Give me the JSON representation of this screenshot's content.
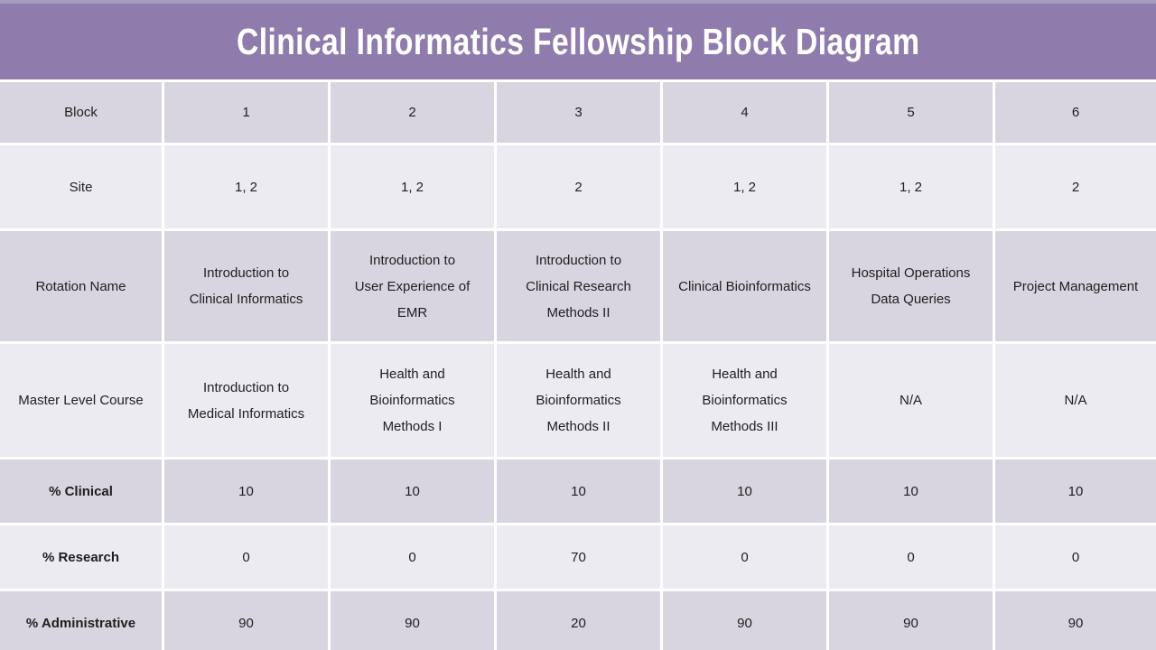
{
  "title": "Clinical Informatics Fellowship Block Diagram",
  "colors": {
    "header_purple": "#8f7cad",
    "header_top_strip": "#a89bc1",
    "row_dark": "#d8d5e0",
    "row_light": "#edebf2",
    "text": "#1e1e1e",
    "title_text": "#ffffff"
  },
  "table": {
    "rows": [
      {
        "label": "Block",
        "bold_label": false,
        "values": [
          "1",
          "2",
          "3",
          "4",
          "5",
          "6"
        ]
      },
      {
        "label": "Site",
        "bold_label": false,
        "values": [
          "1, 2",
          "1, 2",
          "2",
          "1, 2",
          "1, 2",
          "2"
        ]
      },
      {
        "label": "Rotation Name",
        "bold_label": false,
        "values": [
          "Introduction to\nClinical Informatics",
          "Introduction to\nUser Experience of\nEMR",
          "Introduction to\nClinical Research\nMethods II",
          "Clinical Bioinformatics",
          "Hospital Operations\nData Queries",
          "Project Management"
        ]
      },
      {
        "label": "Master Level Course",
        "bold_label": false,
        "values": [
          "Introduction to\nMedical Informatics",
          "Health and\nBioinformatics\nMethods I",
          "Health and\nBioinformatics\nMethods II",
          "Health and\nBioinformatics\nMethods III",
          "N/A",
          "N/A"
        ]
      },
      {
        "label": "% Clinical",
        "bold_label": true,
        "values": [
          "10",
          "10",
          "10",
          "10",
          "10",
          "10"
        ]
      },
      {
        "label": "% Research",
        "bold_label": true,
        "values": [
          "0",
          "0",
          "70",
          "0",
          "0",
          "0"
        ]
      },
      {
        "label": "% Administrative",
        "bold_label": true,
        "values": [
          "90",
          "90",
          "20",
          "90",
          "90",
          "90"
        ]
      }
    ]
  }
}
